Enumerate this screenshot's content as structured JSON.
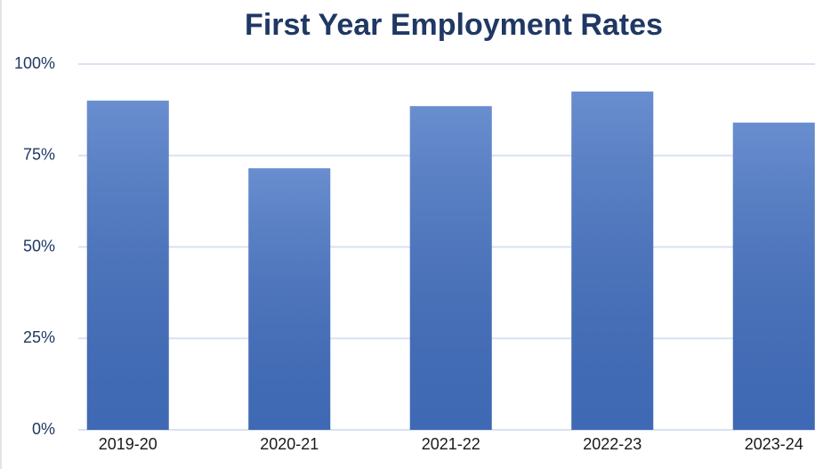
{
  "chart_data": {
    "type": "bar",
    "title": "First Year Employment Rates",
    "categories": [
      "2019-20",
      "2020-21",
      "2021-22",
      "2022-23",
      "2023-24"
    ],
    "values": [
      90,
      71.5,
      88.5,
      92.5,
      84
    ],
    "color": "#4472c4",
    "ylim": [
      0,
      100
    ],
    "yticks": [
      {
        "value": 0,
        "label": "0%"
      },
      {
        "value": 25,
        "label": "25%"
      },
      {
        "value": 50,
        "label": "50%"
      },
      {
        "value": 75,
        "label": "75%"
      },
      {
        "value": 100,
        "label": "100%"
      }
    ],
    "grid": true
  }
}
